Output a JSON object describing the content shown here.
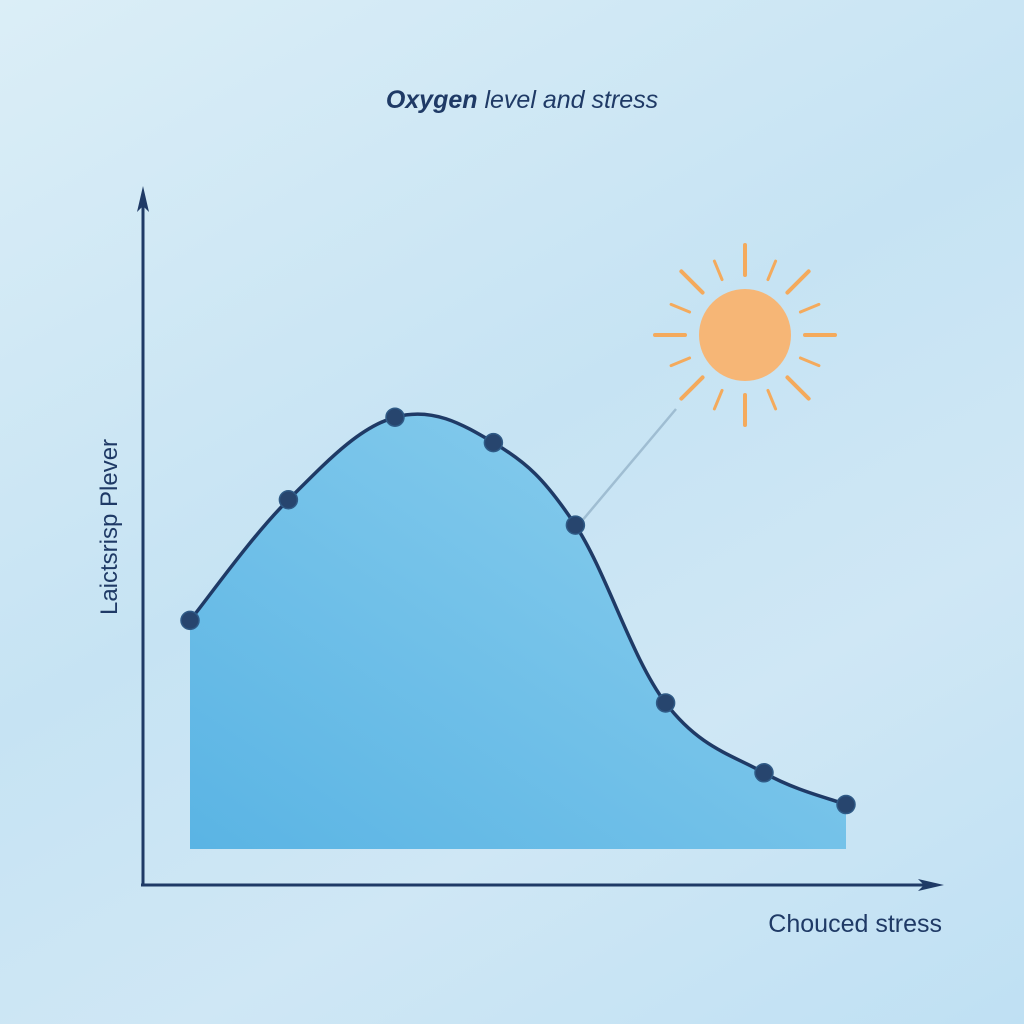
{
  "chart_data": {
    "type": "area",
    "title_bold": "Oxygen",
    "title_rest": " level and stress",
    "xlabel": "Chouced stress",
    "ylabel": "Laictsrisp Plever",
    "x": [
      0.0,
      0.12,
      0.25,
      0.37,
      0.47,
      0.58,
      0.7,
      0.8
    ],
    "values": [
      0.36,
      0.55,
      0.68,
      0.64,
      0.51,
      0.23,
      0.12,
      0.07
    ],
    "xlim": [
      0,
      1.0
    ],
    "ylim": [
      0,
      1.0
    ],
    "grid": false,
    "legend": "none",
    "colors": {
      "line": "#1f3a66",
      "marker": "#27456e",
      "axis": "#1f3a66",
      "area_top": "#8ed0ee",
      "area_bottom": "#5ab4e4",
      "sun": "#f6b676",
      "ray": "#f4aa5c",
      "callout": "#9fbdd2"
    },
    "annotation": {
      "icon": "sun-icon",
      "point_index": 4
    }
  }
}
